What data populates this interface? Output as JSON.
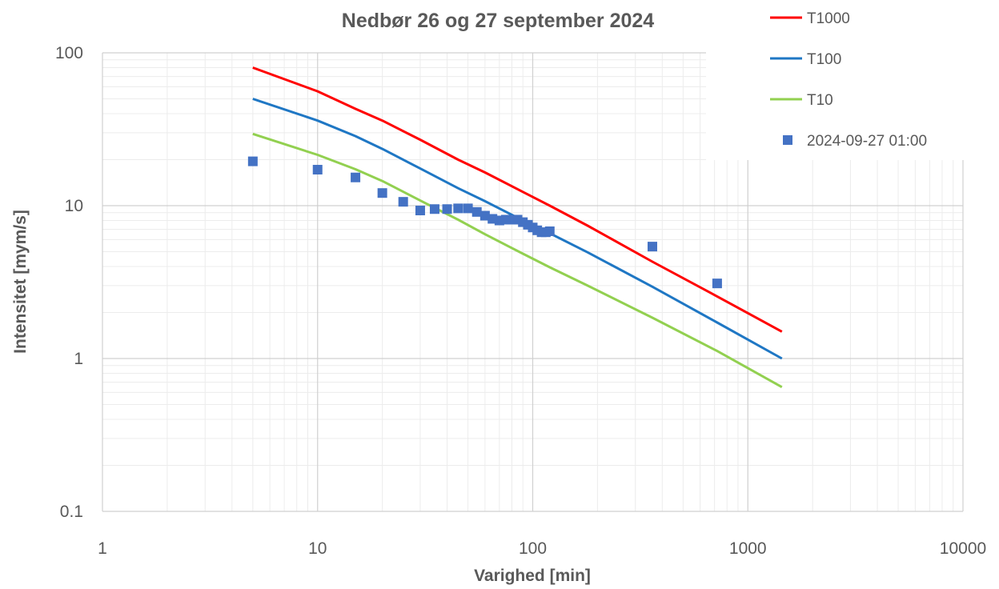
{
  "chart_data": {
    "type": "line",
    "title": "Nedbør 26 og 27 september 2024",
    "xlabel": "Varighed [min]",
    "ylabel": "Intensitet [mym/s]",
    "x_scale": "log",
    "y_scale": "log",
    "xlim": [
      1,
      10000
    ],
    "ylim": [
      0.1,
      100
    ],
    "x_ticks": [
      "1",
      "10",
      "100",
      "1000",
      "10000"
    ],
    "y_ticks": [
      "0.1",
      "1",
      "10",
      "100"
    ],
    "grid": true,
    "legend_position": "top-right",
    "series": [
      {
        "name": "T1000",
        "kind": "line",
        "color": "#ff0000",
        "x": [
          5,
          10,
          15,
          20,
          30,
          45,
          60,
          90,
          120,
          180,
          360,
          720,
          1440
        ],
        "y": [
          80,
          56,
          43,
          36,
          27,
          20,
          16.5,
          12.3,
          10,
          7.4,
          4.3,
          2.55,
          1.5
        ]
      },
      {
        "name": "T100",
        "kind": "line",
        "color": "#1f77c4",
        "x": [
          5,
          10,
          15,
          20,
          30,
          45,
          60,
          90,
          120,
          180,
          360,
          720,
          1440
        ],
        "y": [
          50,
          36,
          28.5,
          23.5,
          17.5,
          13,
          10.7,
          8,
          6.6,
          4.95,
          2.95,
          1.72,
          1.0
        ]
      },
      {
        "name": "T10",
        "kind": "line",
        "color": "#92d050",
        "x": [
          5,
          10,
          15,
          20,
          30,
          45,
          60,
          90,
          120,
          180,
          360,
          720,
          1440
        ],
        "y": [
          29.5,
          21.5,
          17.3,
          14.5,
          10.8,
          8.1,
          6.5,
          4.85,
          3.95,
          3.0,
          1.85,
          1.12,
          0.65
        ]
      },
      {
        "name": "2024-09-27 01:00",
        "kind": "scatter",
        "color": "#4472c4",
        "x": [
          5,
          10,
          15,
          20,
          25,
          30,
          35,
          40,
          45,
          50,
          55,
          60,
          65,
          70,
          75,
          80,
          85,
          90,
          95,
          100,
          105,
          110,
          115,
          120,
          360,
          720
        ],
        "y": [
          19.5,
          17.2,
          15.3,
          12.1,
          10.6,
          9.3,
          9.5,
          9.5,
          9.6,
          9.6,
          9.1,
          8.6,
          8.2,
          8.0,
          8.1,
          8.1,
          8.1,
          7.8,
          7.5,
          7.2,
          6.9,
          6.7,
          6.7,
          6.8,
          5.4,
          3.1
        ]
      }
    ]
  }
}
